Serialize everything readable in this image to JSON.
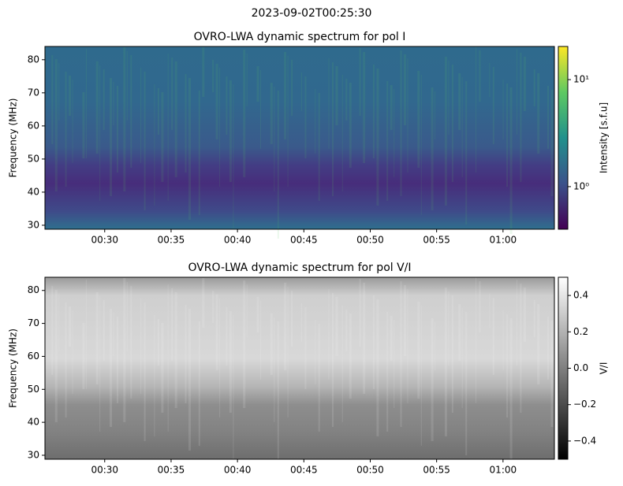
{
  "title": "2023-09-02T00:25:30",
  "chart_data": [
    {
      "type": "heatmap",
      "title": "OVRO-LWA dynamic spectrum for pol I",
      "ylabel": "Frequency (MHz)",
      "xlim": [
        25.5,
        63.87
      ],
      "xticks": [
        {
          "value": 30,
          "label": "00:30"
        },
        {
          "value": 35,
          "label": "00:35"
        },
        {
          "value": 40,
          "label": "00:40"
        },
        {
          "value": 45,
          "label": "00:45"
        },
        {
          "value": 50,
          "label": "00:50"
        },
        {
          "value": 55,
          "label": "00:55"
        },
        {
          "value": 60,
          "label": "01:00"
        }
      ],
      "ylim": [
        28.8,
        84
      ],
      "yticks": [
        30,
        40,
        50,
        60,
        70,
        80
      ],
      "colormap": "viridis",
      "colorbar_label": "Intensity [s.f.u]",
      "colorbar_scale": "log",
      "clim": [
        0.4,
        20.4
      ],
      "cticks": [
        {
          "value": 1,
          "label": "10⁰"
        },
        {
          "value": 10,
          "label": "10¹"
        }
      ]
    },
    {
      "type": "heatmap",
      "title": "OVRO-LWA dynamic spectrum for pol V/I",
      "ylabel": "Frequency (MHz)",
      "xlim": [
        25.5,
        63.87
      ],
      "xticks": [
        {
          "value": 30,
          "label": "00:30"
        },
        {
          "value": 35,
          "label": "00:35"
        },
        {
          "value": 40,
          "label": "00:40"
        },
        {
          "value": 45,
          "label": "00:45"
        },
        {
          "value": 50,
          "label": "00:50"
        },
        {
          "value": 55,
          "label": "00:55"
        },
        {
          "value": 60,
          "label": "01:00"
        }
      ],
      "ylim": [
        28.8,
        84
      ],
      "yticks": [
        30,
        40,
        50,
        60,
        70,
        80
      ],
      "colormap": "gray",
      "colorbar_label": "V/I",
      "colorbar_scale": "linear",
      "clim": [
        -0.5,
        0.5
      ],
      "cticks": [
        0.4,
        0.2,
        {
          "value": 0,
          "label": "0.0"
        },
        {
          "value": -0.2,
          "label": "−0.2"
        },
        {
          "value": -0.4,
          "label": "−0.4"
        }
      ]
    }
  ]
}
